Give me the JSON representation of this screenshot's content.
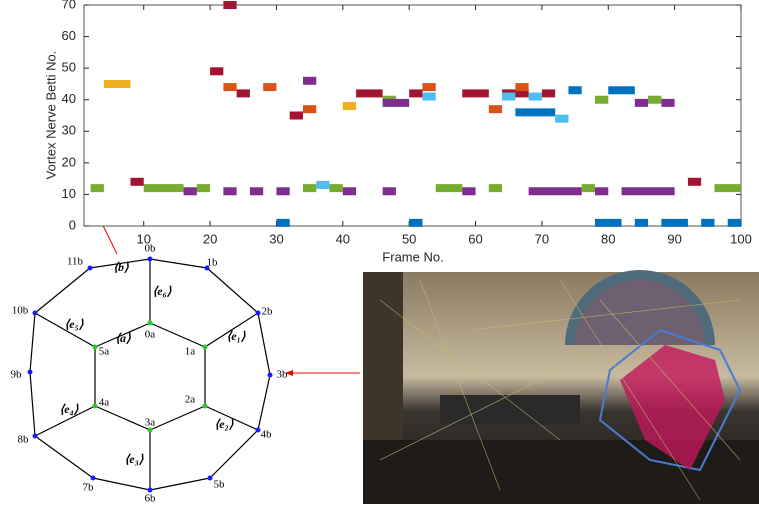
{
  "chart_data": {
    "type": "segments",
    "xlabel": "Frame No.",
    "ylabel": "Vortex Nerve Betti No.",
    "xlim": [
      1,
      100
    ],
    "xticks": [
      10,
      20,
      30,
      40,
      50,
      60,
      70,
      80,
      90,
      100
    ],
    "ylim": [
      0,
      70
    ],
    "yticks": [
      0,
      10,
      20,
      30,
      40,
      50,
      60,
      70
    ],
    "series": [
      {
        "color": "#edb120",
        "segments": [
          [
            4,
            8,
            45
          ],
          [
            40,
            42,
            38
          ]
        ]
      },
      {
        "color": "#77ac30",
        "segments": [
          [
            2,
            4,
            12
          ],
          [
            10,
            16,
            12
          ],
          [
            18,
            20,
            12
          ],
          [
            34,
            36,
            12
          ],
          [
            38,
            40,
            12
          ],
          [
            46,
            48,
            40
          ],
          [
            54,
            58,
            12
          ],
          [
            62,
            64,
            12
          ],
          [
            76,
            78,
            12
          ],
          [
            78,
            80,
            40
          ],
          [
            86,
            88,
            40
          ],
          [
            96,
            100,
            12
          ]
        ]
      },
      {
        "color": "#7e2f8e",
        "segments": [
          [
            16,
            18,
            11
          ],
          [
            22,
            24,
            11
          ],
          [
            26,
            28,
            11
          ],
          [
            30,
            32,
            11
          ],
          [
            34,
            36,
            46
          ],
          [
            40,
            42,
            11
          ],
          [
            46,
            48,
            11
          ],
          [
            46,
            50,
            39
          ],
          [
            58,
            60,
            11
          ],
          [
            68,
            76,
            11
          ],
          [
            78,
            80,
            11
          ],
          [
            82,
            90,
            11
          ],
          [
            84,
            86,
            39
          ],
          [
            88,
            90,
            39
          ]
        ]
      },
      {
        "color": "#a2142f",
        "segments": [
          [
            8,
            10,
            14
          ],
          [
            20,
            22,
            49
          ],
          [
            22,
            24,
            70
          ],
          [
            24,
            26,
            42
          ],
          [
            32,
            34,
            35
          ],
          [
            42,
            46,
            42
          ],
          [
            50,
            52,
            42
          ],
          [
            58,
            62,
            42
          ],
          [
            64,
            68,
            42
          ],
          [
            70,
            72,
            42
          ],
          [
            92,
            94,
            14
          ]
        ]
      },
      {
        "color": "#d95319",
        "segments": [
          [
            22,
            24,
            44
          ],
          [
            28,
            30,
            44
          ],
          [
            34,
            36,
            37
          ],
          [
            52,
            54,
            44
          ],
          [
            62,
            64,
            37
          ],
          [
            66,
            68,
            44
          ]
        ]
      },
      {
        "color": "#4dbeee",
        "segments": [
          [
            36,
            38,
            13
          ],
          [
            52,
            54,
            41
          ],
          [
            64,
            66,
            41
          ],
          [
            68,
            70,
            41
          ],
          [
            72,
            74,
            34
          ]
        ]
      },
      {
        "color": "#0072bd",
        "segments": [
          [
            30,
            32,
            1
          ],
          [
            50,
            52,
            1
          ],
          [
            66,
            72,
            36
          ],
          [
            74,
            76,
            43
          ],
          [
            78,
            82,
            1
          ],
          [
            80,
            84,
            43
          ],
          [
            84,
            86,
            1
          ],
          [
            88,
            92,
            1
          ],
          [
            94,
            96,
            1
          ],
          [
            98,
            100,
            1
          ]
        ]
      }
    ]
  },
  "diagram": {
    "nodes": [
      "0b",
      "1b",
      "2b",
      "3b",
      "4b",
      "5b",
      "6b",
      "7b",
      "8b",
      "9b",
      "10b",
      "11b",
      "0a",
      "1a",
      "2a",
      "3a",
      "4a",
      "5a"
    ],
    "cell_labels": [
      "⟨b⟩",
      "⟨e₆⟩",
      "⟨e₅⟩",
      "⟨a⟩",
      "⟨e₁⟩",
      "⟨e₄⟩",
      "⟨e₂⟩",
      "⟨e₃⟩"
    ]
  }
}
